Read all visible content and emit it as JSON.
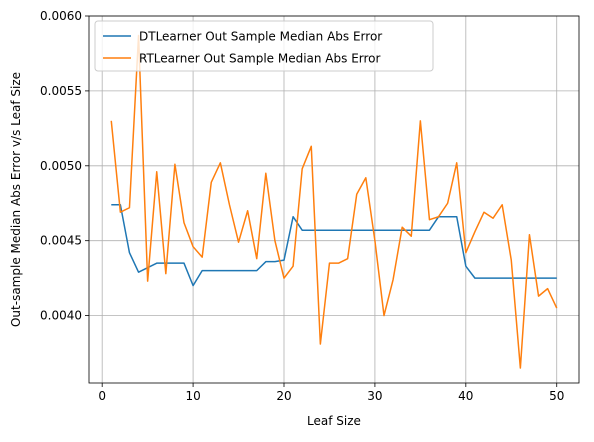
{
  "chart_data": {
    "type": "line",
    "title": "",
    "xlabel": "Leaf Size",
    "ylabel": "Out-sample Median Abs Error v/s Leaf Size",
    "xlim": [
      -1.45,
      52.45
    ],
    "ylim": [
      0.00355,
      0.006
    ],
    "xticks": [
      0,
      10,
      20,
      30,
      40,
      50
    ],
    "xtick_labels": [
      "0",
      "10",
      "20",
      "30",
      "40",
      "50"
    ],
    "yticks": [
      0.004,
      0.0045,
      0.005,
      0.0055,
      0.006
    ],
    "ytick_labels": [
      "0.0040",
      "0.0045",
      "0.0050",
      "0.0055",
      "0.0060"
    ],
    "grid": true,
    "legend_position": "top-left",
    "x": [
      1,
      2,
      3,
      4,
      5,
      6,
      7,
      8,
      9,
      10,
      11,
      12,
      13,
      14,
      15,
      16,
      17,
      18,
      19,
      20,
      21,
      22,
      23,
      24,
      25,
      26,
      27,
      28,
      29,
      30,
      31,
      32,
      33,
      34,
      35,
      36,
      37,
      38,
      39,
      40,
      41,
      42,
      43,
      44,
      45,
      46,
      47,
      48,
      49,
      50
    ],
    "series": [
      {
        "name": "DTLearner Out Sample Median Abs Error",
        "color": "#1f77b4",
        "values": [
          0.00474,
          0.00474,
          0.00442,
          0.00429,
          0.00432,
          0.00435,
          0.00435,
          0.00435,
          0.00435,
          0.0042,
          0.0043,
          0.0043,
          0.0043,
          0.0043,
          0.0043,
          0.0043,
          0.0043,
          0.00436,
          0.00436,
          0.00437,
          0.00466,
          0.00457,
          0.00457,
          0.00457,
          0.00457,
          0.00457,
          0.00457,
          0.00457,
          0.00457,
          0.00457,
          0.00457,
          0.00457,
          0.00457,
          0.00457,
          0.00457,
          0.00457,
          0.00466,
          0.00466,
          0.00466,
          0.00433,
          0.00425,
          0.00425,
          0.00425,
          0.00425,
          0.00425,
          0.00425,
          0.00425,
          0.00425,
          0.00425,
          0.00425
        ]
      },
      {
        "name": "RTLearner Out Sample Median Abs Error",
        "color": "#ff7f0e",
        "values": [
          0.0053,
          0.00469,
          0.00472,
          0.00587,
          0.00423,
          0.00496,
          0.00428,
          0.00501,
          0.00462,
          0.00446,
          0.00439,
          0.00489,
          0.00502,
          0.00474,
          0.00449,
          0.0047,
          0.00438,
          0.00495,
          0.0045,
          0.00425,
          0.00433,
          0.00498,
          0.00513,
          0.00381,
          0.00435,
          0.00435,
          0.00438,
          0.00481,
          0.00492,
          0.0045,
          0.004,
          0.00424,
          0.00459,
          0.00453,
          0.0053,
          0.00464,
          0.00466,
          0.00475,
          0.00502,
          0.00442,
          0.00456,
          0.00469,
          0.00465,
          0.00474,
          0.00437,
          0.00365,
          0.00454,
          0.00413,
          0.00418,
          0.00405
        ]
      }
    ]
  }
}
